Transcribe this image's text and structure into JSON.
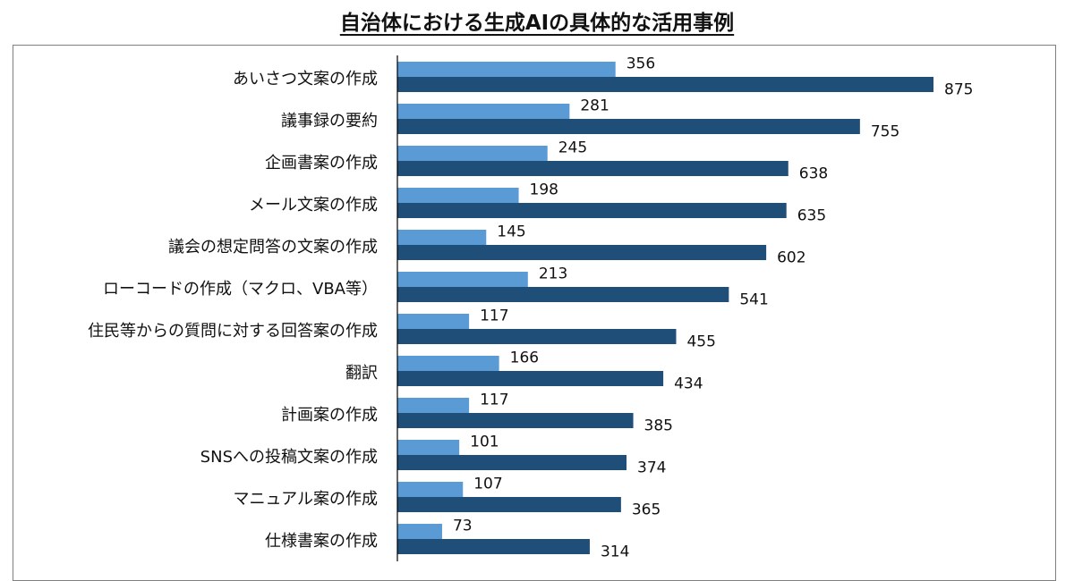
{
  "title": "自治体における生成AIの具体的な活用事例",
  "colors": {
    "series_a": "#5b9bd5",
    "series_b": "#1f4e79",
    "axis": "#000000",
    "frame": "#808080"
  },
  "chart_data": {
    "type": "bar",
    "orientation": "horizontal",
    "title": "自治体における生成AIの具体的な活用事例",
    "xlabel": "",
    "ylabel": "",
    "xlim": [
      0,
      875
    ],
    "grid": false,
    "legend": "none",
    "categories": [
      "あいさつ文案の作成",
      "議事録の要約",
      "企画書案の作成",
      "メール文案の作成",
      "議会の想定問答の文案の作成",
      "ローコードの作成（マクロ、VBA等）",
      "住民等からの質問に対する回答案の作成",
      "翻訳",
      "計画案の作成",
      "SNSへの投稿文案の作成",
      "マニュアル案の作成",
      "仕様書案の作成"
    ],
    "series": [
      {
        "name": "series-light",
        "values": [
          356,
          281,
          245,
          198,
          145,
          213,
          117,
          166,
          117,
          101,
          107,
          73
        ]
      },
      {
        "name": "series-dark",
        "values": [
          875,
          755,
          638,
          635,
          602,
          541,
          455,
          434,
          385,
          374,
          365,
          314
        ]
      }
    ]
  }
}
